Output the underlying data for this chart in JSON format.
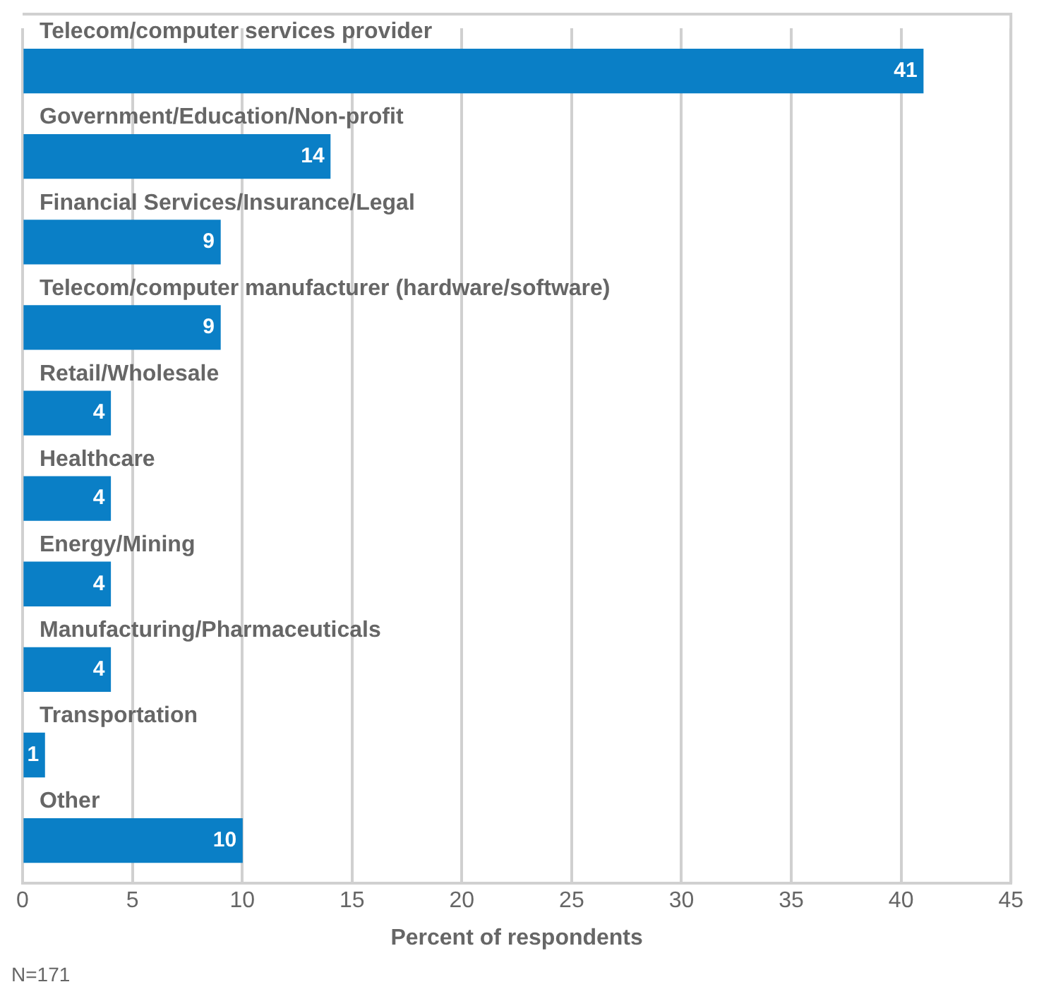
{
  "chart_data": {
    "type": "bar",
    "orientation": "horizontal",
    "xlabel": "Percent of respondents",
    "categories": [
      "Telecom/computer services provider",
      "Government/Education/Non-profit",
      "Financial Services/Insurance/Legal",
      "Telecom/computer manufacturer (hardware/software)",
      "Retail/Wholesale",
      "Healthcare",
      "Energy/Mining",
      "Manufacturing/Pharmaceuticals",
      "Transportation",
      "Other"
    ],
    "values": [
      41,
      14,
      9,
      9,
      4,
      4,
      4,
      4,
      1,
      10
    ],
    "color": "#0a7fc6",
    "xlim": [
      0,
      45
    ],
    "xticks": [
      0,
      5,
      10,
      15,
      20,
      25,
      30,
      35,
      40,
      45
    ],
    "grid": "x",
    "data_labels": true,
    "legend": false,
    "annotations": [
      "N=171"
    ]
  }
}
